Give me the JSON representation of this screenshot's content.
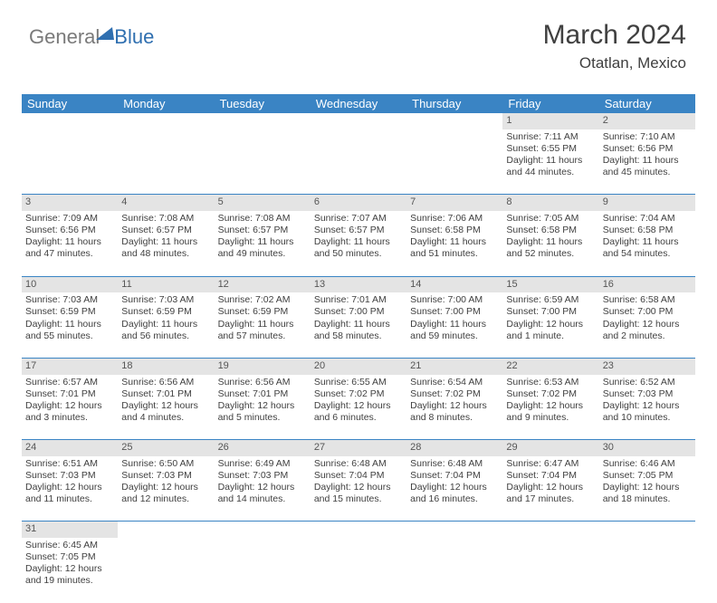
{
  "logo": {
    "text_gray": "General",
    "text_blue": "Blue"
  },
  "header": {
    "month_title": "March 2024",
    "location": "Otatlan, Mexico"
  },
  "colors": {
    "header_bg": "#3a84c4",
    "header_text": "#ffffff",
    "daynum_bg": "#e4e4e4",
    "cell_border": "#3a84c4",
    "text": "#404040",
    "logo_gray": "#7a7a7a",
    "logo_blue": "#2f6fb0"
  },
  "weekdays": [
    "Sunday",
    "Monday",
    "Tuesday",
    "Wednesday",
    "Thursday",
    "Friday",
    "Saturday"
  ],
  "weeks": [
    {
      "nums": [
        "",
        "",
        "",
        "",
        "",
        "1",
        "2"
      ],
      "cells": [
        null,
        null,
        null,
        null,
        null,
        {
          "sunrise": "Sunrise: 7:11 AM",
          "sunset": "Sunset: 6:55 PM",
          "day1": "Daylight: 11 hours",
          "day2": "and 44 minutes."
        },
        {
          "sunrise": "Sunrise: 7:10 AM",
          "sunset": "Sunset: 6:56 PM",
          "day1": "Daylight: 11 hours",
          "day2": "and 45 minutes."
        }
      ]
    },
    {
      "nums": [
        "3",
        "4",
        "5",
        "6",
        "7",
        "8",
        "9"
      ],
      "cells": [
        {
          "sunrise": "Sunrise: 7:09 AM",
          "sunset": "Sunset: 6:56 PM",
          "day1": "Daylight: 11 hours",
          "day2": "and 47 minutes."
        },
        {
          "sunrise": "Sunrise: 7:08 AM",
          "sunset": "Sunset: 6:57 PM",
          "day1": "Daylight: 11 hours",
          "day2": "and 48 minutes."
        },
        {
          "sunrise": "Sunrise: 7:08 AM",
          "sunset": "Sunset: 6:57 PM",
          "day1": "Daylight: 11 hours",
          "day2": "and 49 minutes."
        },
        {
          "sunrise": "Sunrise: 7:07 AM",
          "sunset": "Sunset: 6:57 PM",
          "day1": "Daylight: 11 hours",
          "day2": "and 50 minutes."
        },
        {
          "sunrise": "Sunrise: 7:06 AM",
          "sunset": "Sunset: 6:58 PM",
          "day1": "Daylight: 11 hours",
          "day2": "and 51 minutes."
        },
        {
          "sunrise": "Sunrise: 7:05 AM",
          "sunset": "Sunset: 6:58 PM",
          "day1": "Daylight: 11 hours",
          "day2": "and 52 minutes."
        },
        {
          "sunrise": "Sunrise: 7:04 AM",
          "sunset": "Sunset: 6:58 PM",
          "day1": "Daylight: 11 hours",
          "day2": "and 54 minutes."
        }
      ]
    },
    {
      "nums": [
        "10",
        "11",
        "12",
        "13",
        "14",
        "15",
        "16"
      ],
      "cells": [
        {
          "sunrise": "Sunrise: 7:03 AM",
          "sunset": "Sunset: 6:59 PM",
          "day1": "Daylight: 11 hours",
          "day2": "and 55 minutes."
        },
        {
          "sunrise": "Sunrise: 7:03 AM",
          "sunset": "Sunset: 6:59 PM",
          "day1": "Daylight: 11 hours",
          "day2": "and 56 minutes."
        },
        {
          "sunrise": "Sunrise: 7:02 AM",
          "sunset": "Sunset: 6:59 PM",
          "day1": "Daylight: 11 hours",
          "day2": "and 57 minutes."
        },
        {
          "sunrise": "Sunrise: 7:01 AM",
          "sunset": "Sunset: 7:00 PM",
          "day1": "Daylight: 11 hours",
          "day2": "and 58 minutes."
        },
        {
          "sunrise": "Sunrise: 7:00 AM",
          "sunset": "Sunset: 7:00 PM",
          "day1": "Daylight: 11 hours",
          "day2": "and 59 minutes."
        },
        {
          "sunrise": "Sunrise: 6:59 AM",
          "sunset": "Sunset: 7:00 PM",
          "day1": "Daylight: 12 hours",
          "day2": "and 1 minute."
        },
        {
          "sunrise": "Sunrise: 6:58 AM",
          "sunset": "Sunset: 7:00 PM",
          "day1": "Daylight: 12 hours",
          "day2": "and 2 minutes."
        }
      ]
    },
    {
      "nums": [
        "17",
        "18",
        "19",
        "20",
        "21",
        "22",
        "23"
      ],
      "cells": [
        {
          "sunrise": "Sunrise: 6:57 AM",
          "sunset": "Sunset: 7:01 PM",
          "day1": "Daylight: 12 hours",
          "day2": "and 3 minutes."
        },
        {
          "sunrise": "Sunrise: 6:56 AM",
          "sunset": "Sunset: 7:01 PM",
          "day1": "Daylight: 12 hours",
          "day2": "and 4 minutes."
        },
        {
          "sunrise": "Sunrise: 6:56 AM",
          "sunset": "Sunset: 7:01 PM",
          "day1": "Daylight: 12 hours",
          "day2": "and 5 minutes."
        },
        {
          "sunrise": "Sunrise: 6:55 AM",
          "sunset": "Sunset: 7:02 PM",
          "day1": "Daylight: 12 hours",
          "day2": "and 6 minutes."
        },
        {
          "sunrise": "Sunrise: 6:54 AM",
          "sunset": "Sunset: 7:02 PM",
          "day1": "Daylight: 12 hours",
          "day2": "and 8 minutes."
        },
        {
          "sunrise": "Sunrise: 6:53 AM",
          "sunset": "Sunset: 7:02 PM",
          "day1": "Daylight: 12 hours",
          "day2": "and 9 minutes."
        },
        {
          "sunrise": "Sunrise: 6:52 AM",
          "sunset": "Sunset: 7:03 PM",
          "day1": "Daylight: 12 hours",
          "day2": "and 10 minutes."
        }
      ]
    },
    {
      "nums": [
        "24",
        "25",
        "26",
        "27",
        "28",
        "29",
        "30"
      ],
      "cells": [
        {
          "sunrise": "Sunrise: 6:51 AM",
          "sunset": "Sunset: 7:03 PM",
          "day1": "Daylight: 12 hours",
          "day2": "and 11 minutes."
        },
        {
          "sunrise": "Sunrise: 6:50 AM",
          "sunset": "Sunset: 7:03 PM",
          "day1": "Daylight: 12 hours",
          "day2": "and 12 minutes."
        },
        {
          "sunrise": "Sunrise: 6:49 AM",
          "sunset": "Sunset: 7:03 PM",
          "day1": "Daylight: 12 hours",
          "day2": "and 14 minutes."
        },
        {
          "sunrise": "Sunrise: 6:48 AM",
          "sunset": "Sunset: 7:04 PM",
          "day1": "Daylight: 12 hours",
          "day2": "and 15 minutes."
        },
        {
          "sunrise": "Sunrise: 6:48 AM",
          "sunset": "Sunset: 7:04 PM",
          "day1": "Daylight: 12 hours",
          "day2": "and 16 minutes."
        },
        {
          "sunrise": "Sunrise: 6:47 AM",
          "sunset": "Sunset: 7:04 PM",
          "day1": "Daylight: 12 hours",
          "day2": "and 17 minutes."
        },
        {
          "sunrise": "Sunrise: 6:46 AM",
          "sunset": "Sunset: 7:05 PM",
          "day1": "Daylight: 12 hours",
          "day2": "and 18 minutes."
        }
      ]
    },
    {
      "nums": [
        "31",
        "",
        "",
        "",
        "",
        "",
        ""
      ],
      "cells": [
        {
          "sunrise": "Sunrise: 6:45 AM",
          "sunset": "Sunset: 7:05 PM",
          "day1": "Daylight: 12 hours",
          "day2": "and 19 minutes."
        },
        null,
        null,
        null,
        null,
        null,
        null
      ]
    }
  ]
}
